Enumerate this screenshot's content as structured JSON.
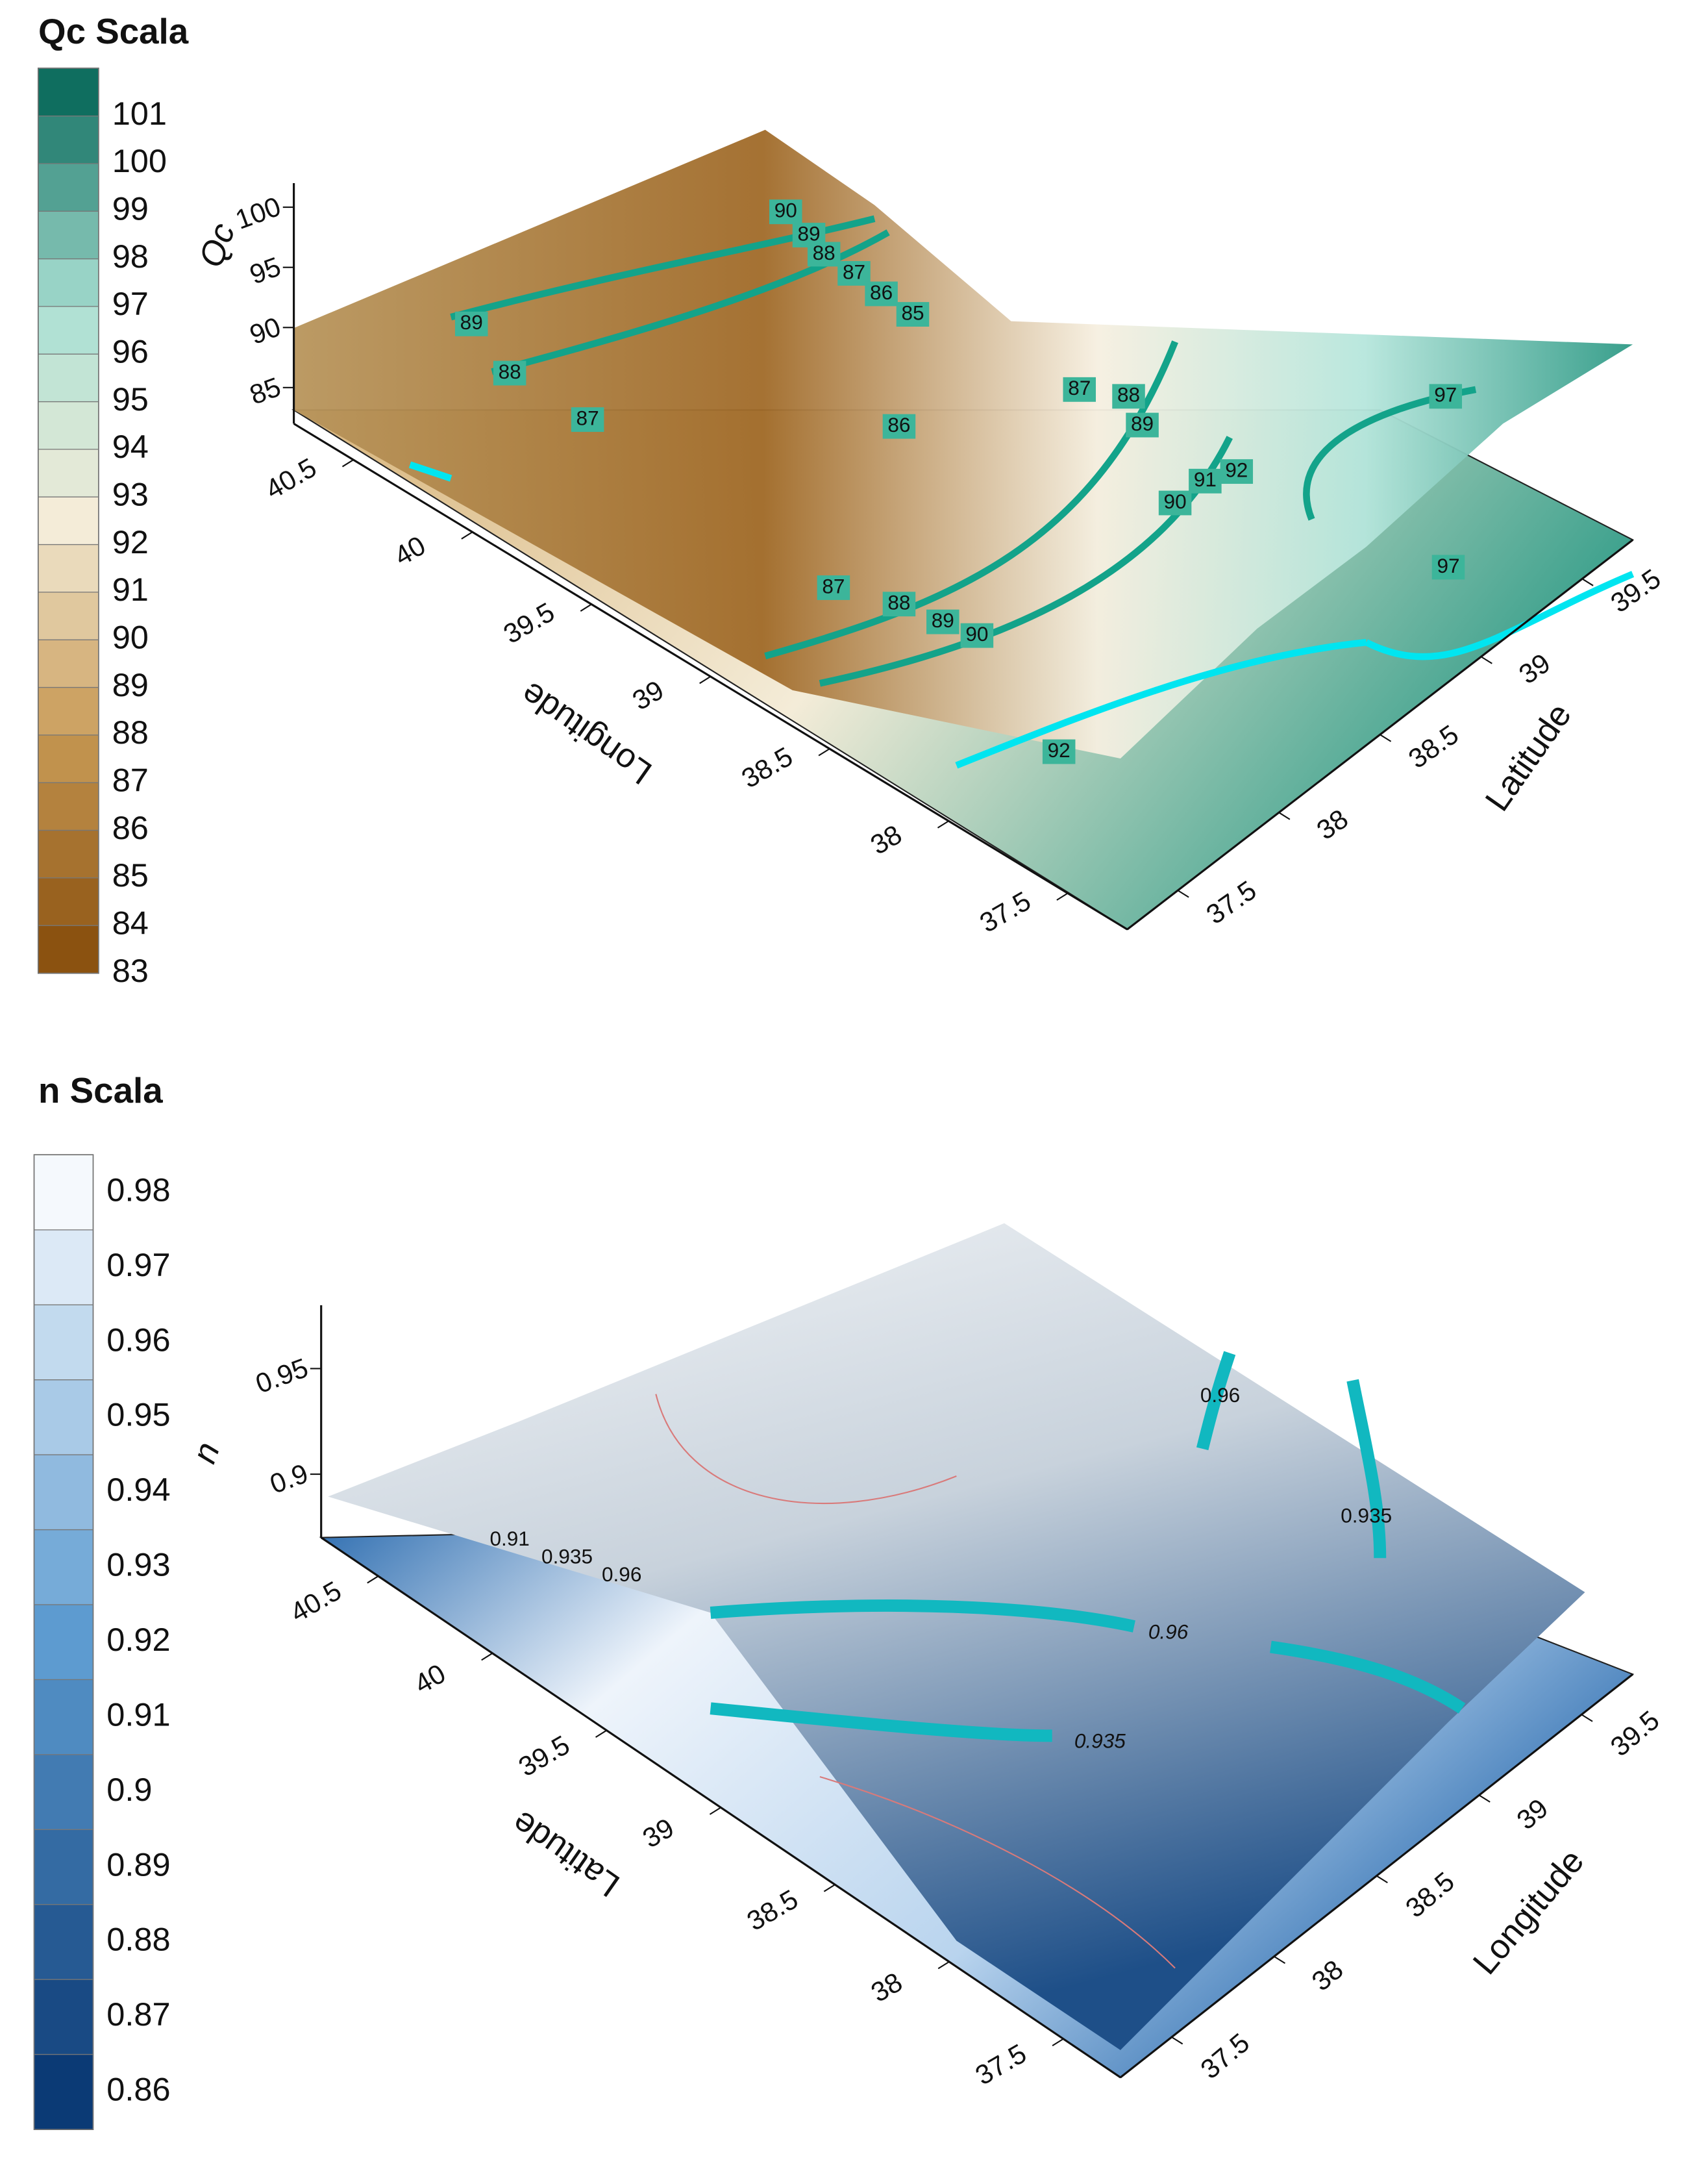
{
  "chart_data": [
    {
      "type": "surface3d",
      "title": "Qc Scala",
      "colorbar_ticks": [
        83,
        84,
        85,
        86,
        87,
        88,
        89,
        90,
        91,
        92,
        93,
        94,
        95,
        96,
        97,
        98,
        99,
        100,
        101
      ],
      "clim": [
        83,
        102
      ],
      "colormap": [
        "#8b5210",
        "#c89a55",
        "#f4ecd8",
        "#a9e0d3",
        "#0f6e5f"
      ],
      "x_label": "Longitude",
      "xticks": [
        37.5,
        38,
        38.5,
        39,
        39.5,
        40,
        40.5
      ],
      "xlim": [
        37.25,
        40.75
      ],
      "y_label": "Latitude",
      "yticks": [
        37.5,
        38,
        38.5,
        39,
        39.5
      ],
      "ylim": [
        37.25,
        39.75
      ],
      "z_label": "Qc",
      "zticks": [
        85,
        90,
        95,
        100
      ],
      "zlim": [
        82,
        102
      ],
      "contour_labels": [
        90,
        89,
        88,
        87,
        86,
        85,
        89,
        88,
        87,
        86,
        87,
        88,
        89,
        90,
        91,
        92,
        97,
        87,
        88,
        89,
        90,
        97,
        92
      ]
    },
    {
      "type": "surface3d",
      "title": "n Scala",
      "colorbar_ticks": [
        0.86,
        0.87,
        0.88,
        0.89,
        0.9,
        0.91,
        0.92,
        0.93,
        0.94,
        0.95,
        0.96,
        0.97,
        0.98
      ],
      "clim": [
        0.855,
        0.985
      ],
      "colormap": [
        "#0b3a75",
        "#5d9bd0",
        "#f5f9fd"
      ],
      "x_label": "Latitude",
      "xticks": [
        37.5,
        38,
        38.5,
        39,
        39.5,
        40,
        40.5
      ],
      "xlim": [
        37.25,
        40.75
      ],
      "y_label": "Longitude",
      "yticks": [
        37.5,
        38,
        38.5,
        39,
        39.5
      ],
      "ylim": [
        37.25,
        39.75
      ],
      "z_label": "n",
      "zticks": [
        0.9,
        0.95
      ],
      "zlim": [
        0.87,
        0.98
      ],
      "contour_labels": [
        0.91,
        0.935,
        0.96,
        0.96,
        0.935,
        0.96,
        0.935
      ]
    }
  ]
}
